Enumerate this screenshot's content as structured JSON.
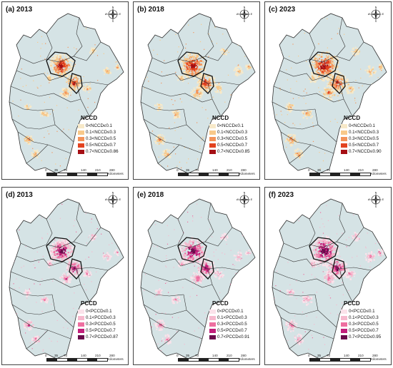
{
  "panels": [
    {
      "label": "(a) 2013",
      "legend_title": "NCCD",
      "palette": "red",
      "classes": [
        "0<NCCD≤0.1",
        "0.1<NCCD≤0.3",
        "0.3<NCCD≤0.5",
        "0.5<NCCD≤0.7",
        "0.7<NCCD≤0.86"
      ]
    },
    {
      "label": "(b) 2018",
      "legend_title": "NCCD",
      "palette": "red",
      "classes": [
        "0<NCCD≤0.1",
        "0.1<NCCD≤0.3",
        "0.3<NCCD≤0.5",
        "0.5<NCCD≤0.7",
        "0.7<NCCD≤0.85"
      ]
    },
    {
      "label": "(c) 2023",
      "legend_title": "NCCD",
      "palette": "red",
      "classes": [
        "0<NCCD≤0.1",
        "0.1<NCCD≤0.3",
        "0.3<NCCD≤0.5",
        "0.5<NCCD≤0.7",
        "0.7<NCCD≤0.90"
      ]
    },
    {
      "label": "(d) 2013",
      "legend_title": "PCCD",
      "palette": "pink",
      "classes": [
        "0<PCCD≤0.1",
        "0.1<PCCD≤0.3",
        "0.3<PCCD≤0.5",
        "0.5<PCCD≤0.7",
        "0.7<PCCD≤0.87"
      ]
    },
    {
      "label": "(e) 2018",
      "legend_title": "PCCD",
      "palette": "pink",
      "classes": [
        "0<PCCD≤0.1",
        "0.1<PCCD≤0.3",
        "0.3<PCCD≤0.5",
        "0.5<PCCD≤0.7",
        "0.7<PCCD≤0.91"
      ]
    },
    {
      "label": "(f) 2023",
      "legend_title": "PCCD",
      "palette": "pink",
      "classes": [
        "0<PCCD≤0.1",
        "0.1<PCCD≤0.3",
        "0.3<PCCD≤0.5",
        "0.5<PCCD≤0.7",
        "0.7<PCCD≤0.95"
      ]
    }
  ],
  "palettes": {
    "red": [
      "#f7e9c9",
      "#f8c98a",
      "#f3935a",
      "#e2421f",
      "#a50f15"
    ],
    "pink": [
      "#fbe2ea",
      "#f6b9ce",
      "#ee6fa0",
      "#c21f7b",
      "#6a0a4b"
    ]
  },
  "map_fill": "#d5e3e5",
  "compass_letters": {
    "n": "N",
    "s": "S",
    "e": "E",
    "w": "W"
  },
  "scale": {
    "ticks": [
      "0",
      "35",
      "70",
      "140",
      "210",
      "280"
    ],
    "unit": "Kilometers"
  }
}
